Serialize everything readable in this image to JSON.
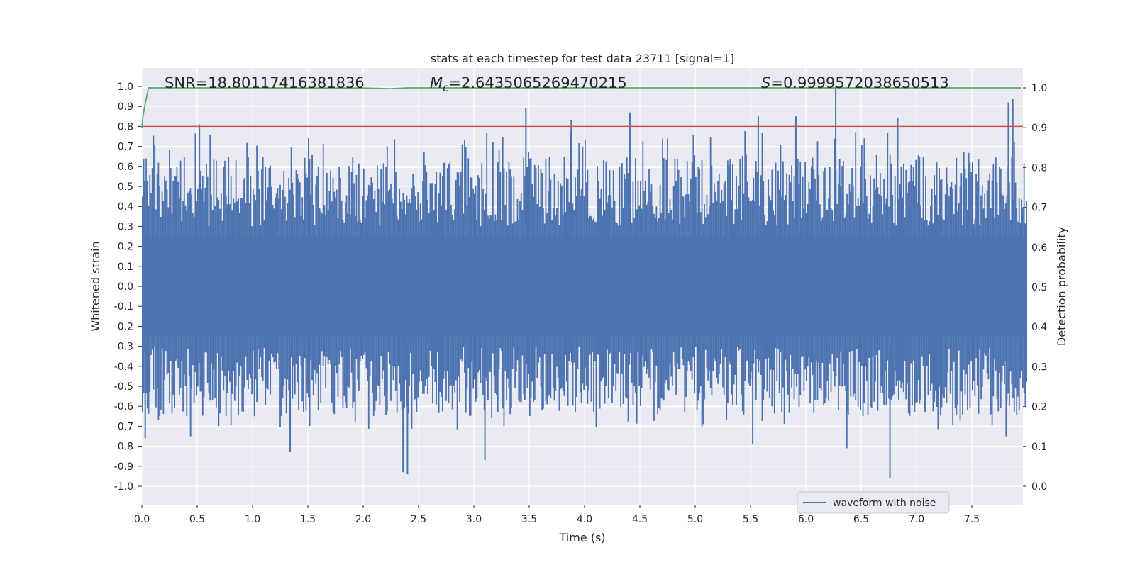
{
  "chart_data": {
    "type": "line",
    "title": "stats at each timestep for test data 23711 [signal=1]",
    "xlabel": "Time (s)",
    "ylabel": "Whitened strain",
    "y2label": "Detection probability",
    "xlim": [
      0.0,
      8.0
    ],
    "ylim": [
      -1.08,
      1.08
    ],
    "y2lim": [
      -0.05,
      1.05
    ],
    "xticks": [
      "0.0",
      "0.5",
      "1.0",
      "1.5",
      "2.0",
      "2.5",
      "3.0",
      "3.5",
      "4.0",
      "4.5",
      "5.0",
      "5.5",
      "6.0",
      "6.5",
      "7.0",
      "7.5"
    ],
    "yticks": [
      "1.0",
      "0.9",
      "0.8",
      "0.7",
      "0.6",
      "0.5",
      "0.4",
      "0.3",
      "0.2",
      "0.1",
      "0.0",
      "-0.1",
      "-0.2",
      "-0.3",
      "-0.4",
      "-0.5",
      "-0.6",
      "-0.7",
      "-0.8",
      "-0.9",
      "-1.0"
    ],
    "y2ticks": [
      "1.0",
      "0.9",
      "0.8",
      "0.7",
      "0.6",
      "0.5",
      "0.4",
      "0.3",
      "0.2",
      "0.1",
      "0.0"
    ],
    "annotations": {
      "snr": "SNR=18.80117416381836",
      "mc_symbol": "M",
      "mc_sub": "c",
      "mc_value": "=2.6435065269470215",
      "s_symbol": "S",
      "s_value": "=0.9999572038650513"
    },
    "legend": {
      "label": "waveform with noise",
      "position": "lower-right"
    },
    "threshold": {
      "value": 0.8,
      "color": "#c44e52"
    },
    "series": [
      {
        "name": "waveform with noise",
        "color": "#4c72b0",
        "axis": "left",
        "duration": 8.0,
        "envelope": {
          "core": 0.25,
          "typical_peak": 0.55,
          "max": 1.0,
          "min": -0.96
        },
        "peaks": [
          [
            0.52,
            0.81
          ],
          [
            3.47,
            0.89
          ],
          [
            3.88,
            0.83
          ],
          [
            4.41,
            0.87
          ],
          [
            5.57,
            0.85
          ],
          [
            5.91,
            0.85
          ],
          [
            6.27,
            1.0
          ],
          [
            6.83,
            0.84
          ],
          [
            7.83,
            0.92
          ],
          [
            7.87,
            0.94
          ]
        ],
        "troughs": [
          [
            0.03,
            -0.76
          ],
          [
            0.44,
            -0.75
          ],
          [
            1.34,
            -0.83
          ],
          [
            2.36,
            -0.93
          ],
          [
            2.4,
            -0.94
          ],
          [
            3.1,
            -0.87
          ],
          [
            5.52,
            -0.79
          ],
          [
            6.37,
            -0.81
          ],
          [
            6.76,
            -0.96
          ],
          [
            7.81,
            -0.75
          ]
        ]
      },
      {
        "name": "detection probability",
        "color": "#55a868",
        "axis": "right",
        "x": [
          0.0,
          0.01,
          0.03,
          0.06,
          0.1,
          0.3,
          1.0,
          2.0,
          2.25,
          2.4,
          3.0,
          4.0,
          5.0,
          6.0,
          7.0,
          7.95
        ],
        "values": [
          0.9,
          0.93,
          0.96,
          1.0,
          1.0,
          1.0,
          1.0,
          0.9995,
          0.998,
          1.0,
          1.0,
          1.0,
          1.0,
          1.0,
          1.0,
          1.0
        ]
      }
    ]
  }
}
